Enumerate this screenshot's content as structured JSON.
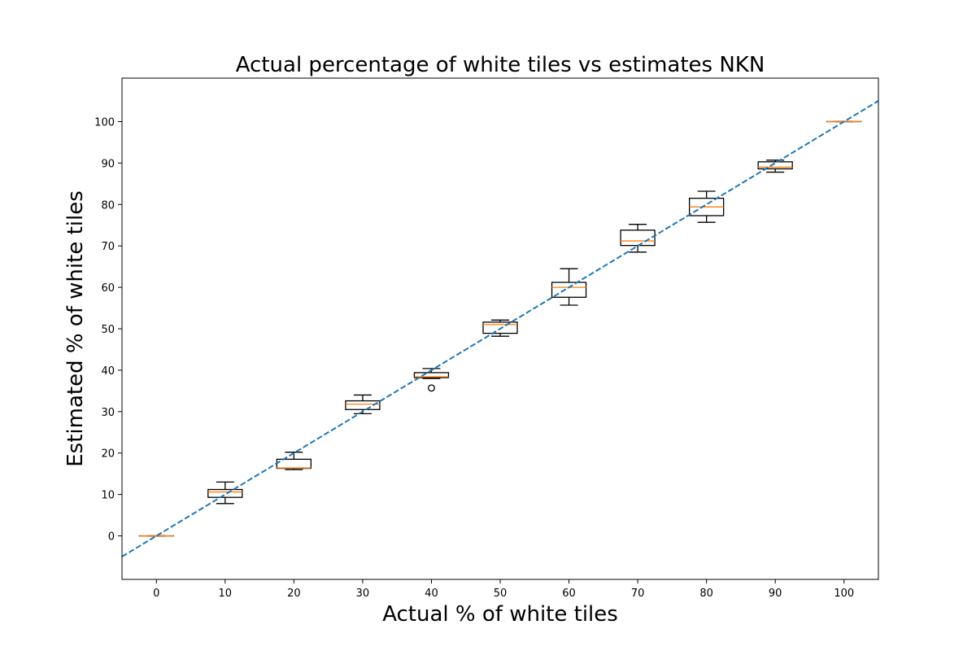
{
  "chart_data": {
    "type": "boxplot",
    "title": "Actual percentage of white tiles vs estimates NKN",
    "xlabel": "Actual % of white tiles",
    "ylabel": "Estimated % of white tiles",
    "xlim": [
      -5,
      105
    ],
    "ylim": [
      -10.5,
      110.5
    ],
    "xticks": [
      0,
      10,
      20,
      30,
      40,
      50,
      60,
      70,
      80,
      90,
      100
    ],
    "yticks": [
      0,
      10,
      20,
      30,
      40,
      50,
      60,
      70,
      80,
      90,
      100
    ],
    "boxes": [
      {
        "x": 0,
        "whislo": 0,
        "q1": 0,
        "med": 0,
        "q3": 0,
        "whishi": 0,
        "fliers": []
      },
      {
        "x": 10,
        "whislo": 7.8,
        "q1": 9.3,
        "med": 10.6,
        "q3": 11.2,
        "whishi": 13.0,
        "fliers": []
      },
      {
        "x": 20,
        "whislo": 16.0,
        "q1": 16.3,
        "med": 16.4,
        "q3": 18.5,
        "whishi": 20.2,
        "fliers": []
      },
      {
        "x": 30,
        "whislo": 29.5,
        "q1": 30.5,
        "med": 31.8,
        "q3": 32.6,
        "whishi": 34.0,
        "fliers": []
      },
      {
        "x": 40,
        "whislo": 38.0,
        "q1": 38.2,
        "med": 38.4,
        "q3": 39.4,
        "whishi": 40.4,
        "fliers": [
          35.7
        ]
      },
      {
        "x": 50,
        "whislo": 48.2,
        "q1": 48.9,
        "med": 51.0,
        "q3": 51.6,
        "whishi": 52.1,
        "fliers": []
      },
      {
        "x": 60,
        "whislo": 55.7,
        "q1": 57.6,
        "med": 60.0,
        "q3": 61.2,
        "whishi": 64.5,
        "fliers": []
      },
      {
        "x": 70,
        "whislo": 68.5,
        "q1": 70.1,
        "med": 71.2,
        "q3": 73.8,
        "whishi": 75.2,
        "fliers": []
      },
      {
        "x": 80,
        "whislo": 75.7,
        "q1": 77.3,
        "med": 79.4,
        "q3": 81.5,
        "whishi": 83.2,
        "fliers": []
      },
      {
        "x": 90,
        "whislo": 87.8,
        "q1": 88.6,
        "med": 89.0,
        "q3": 90.3,
        "whishi": 90.7,
        "fliers": []
      },
      {
        "x": 100,
        "whislo": 100,
        "q1": 100,
        "med": 100,
        "q3": 100,
        "whishi": 100,
        "fliers": []
      }
    ],
    "reference_line": {
      "style": "dashed",
      "from": [
        -5,
        -5
      ],
      "to": [
        105,
        105
      ]
    },
    "colors": {
      "box": "#000000",
      "median": "#ff7f0e",
      "reference_line": "#1f77b4"
    },
    "grid": false,
    "legend": "none"
  }
}
